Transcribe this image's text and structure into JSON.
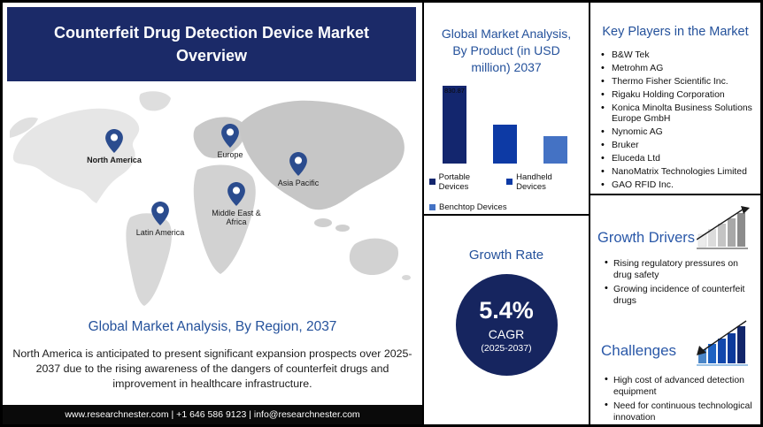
{
  "title": "Counterfeit Drug Detection Device Market Overview",
  "left_panel": {
    "regions": [
      "North America",
      "Europe",
      "Asia Pacific",
      "Middle East & Africa",
      "Latin America"
    ],
    "map_caption": "Global Market Analysis, By Region, 2037",
    "summary": "North America is anticipated to present significant expansion prospects over 2025-2037 due to the rising awareness of the dangers of counterfeit drugs and improvement in healthcare infrastructure."
  },
  "footer": {
    "text": "www.researchnester.com | +1 646 586 9123 | info@researchnester.com"
  },
  "chart_data": {
    "type": "bar",
    "title": "Global Market Analysis, By Product (in USD million) 2037",
    "categories": [
      "Portable Devices",
      "Handheld Devices",
      "Benchtop Devices"
    ],
    "values": [
      830.87,
      415,
      295
    ],
    "data_labels": [
      "830.87",
      "",
      ""
    ],
    "colors": [
      "#13266e",
      "#0d3aa5",
      "#4472c4"
    ],
    "ylim": [
      0,
      900
    ],
    "grid": false,
    "legend_position": "bottom"
  },
  "growth_rate": {
    "heading": "Growth Rate",
    "value": "5.4%",
    "metric": "CAGR",
    "period": "(2025-2037)"
  },
  "key_players": {
    "heading": "Key Players in the Market",
    "items": [
      "B&W Tek",
      "Metrohm AG",
      "Thermo Fisher Scientific Inc.",
      "Rigaku Holding Corporation",
      "Konica Minolta Business Solutions Europe GmbH",
      "Nynomic AG",
      "Bruker",
      "Eluceda Ltd",
      "NanoMatrix Technologies Limited",
      "GAO RFID Inc."
    ]
  },
  "growth_drivers": {
    "heading": "Growth Drivers",
    "items": [
      "Rising regulatory pressures on drug safety",
      "Growing incidence of counterfeit drugs"
    ]
  },
  "challenges": {
    "heading": "Challenges",
    "items": [
      "High cost of advanced detection equipment",
      "Need for continuous technological innovation"
    ]
  },
  "colors": {
    "banner_navy": "#1b2a68",
    "heading_blue": "#24519b",
    "circle_navy": "#16255f",
    "pin_blue": "#2b4c8e",
    "footer_black": "#0a0a0a"
  }
}
